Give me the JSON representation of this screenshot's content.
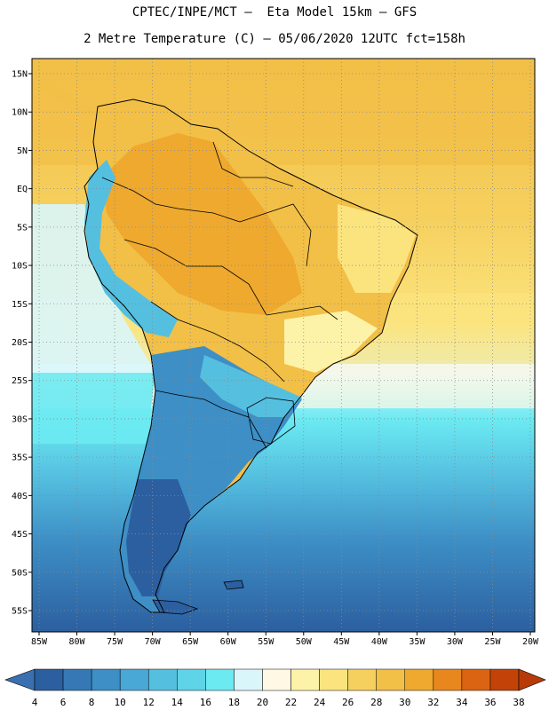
{
  "header": {
    "line1": "CPTEC/INPE/MCT –  Eta Model 15km – GFS",
    "line2": "2 Metre Temperature (C) – 05/06/2020 12UTC fct=158h"
  },
  "map": {
    "lat_labels": [
      "15N",
      "10N",
      "5N",
      "EQ",
      "5S",
      "10S",
      "15S",
      "20S",
      "25S",
      "30S",
      "35S",
      "40S",
      "45S",
      "50S",
      "55S"
    ],
    "lon_labels": [
      "85W",
      "80W",
      "75W",
      "70W",
      "65W",
      "60W",
      "55W",
      "50W",
      "45W",
      "40W",
      "35W",
      "30W",
      "25W",
      "20W"
    ],
    "colorbar_labels": [
      "4",
      "6",
      "8",
      "10",
      "12",
      "14",
      "16",
      "18",
      "20",
      "22",
      "24",
      "26",
      "28",
      "30",
      "32",
      "34",
      "36",
      "38"
    ],
    "colorbar_colors": [
      "#2c5fa0",
      "#3578b5",
      "#3d8fc6",
      "#4aa8d6",
      "#55bfe0",
      "#5fd4e8",
      "#6beaf2",
      "#d9f6fb",
      "#fff8e4",
      "#fdf3a8",
      "#fbe47e",
      "#f6d05e",
      "#f2bf47",
      "#eea92e",
      "#e8871e",
      "#db6412",
      "#c24208"
    ],
    "colorbar_low_arrow": "#3a6fb0",
    "colorbar_high_arrow": "#b83a08"
  }
}
